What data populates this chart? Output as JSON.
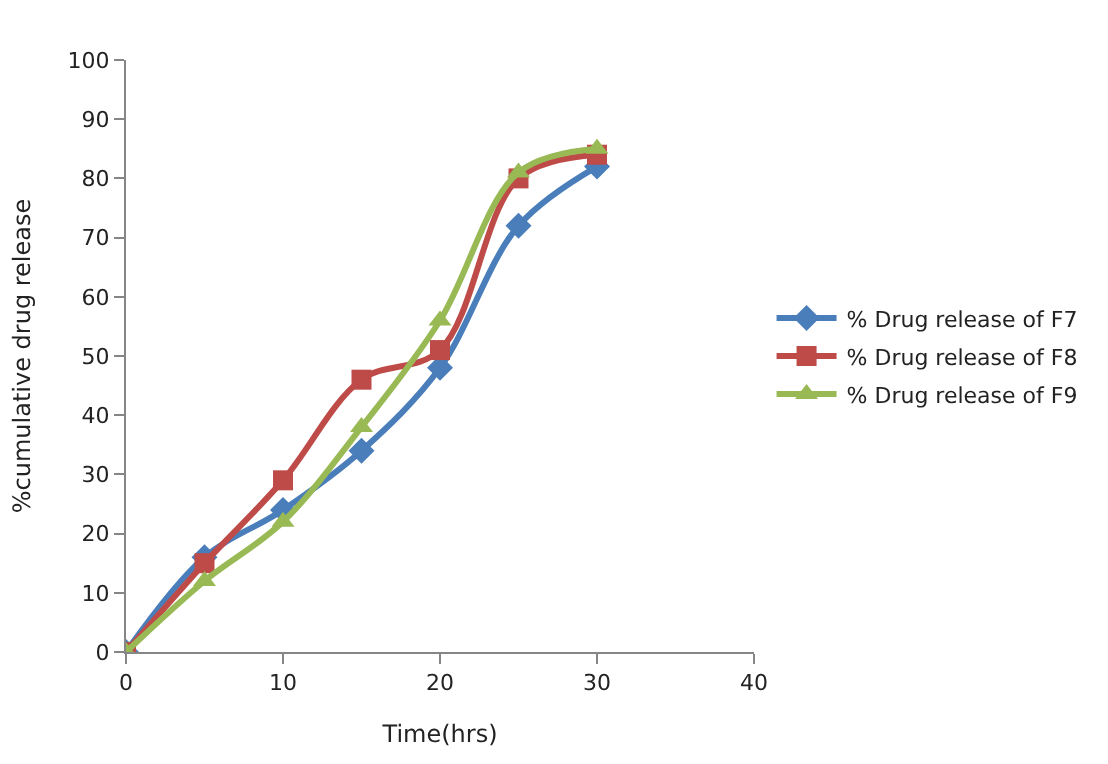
{
  "chart_data": {
    "type": "line",
    "xlabel": "Time(hrs)",
    "ylabel": "%cumulative drug release",
    "x": [
      0,
      5,
      10,
      15,
      20,
      25,
      30
    ],
    "series": [
      {
        "name": "% Drug release of F7",
        "color": "#4a7ebb",
        "marker": "diamond",
        "values": [
          0,
          16,
          24,
          34,
          48,
          72,
          82
        ]
      },
      {
        "name": "% Drug release of F8",
        "color": "#be4b48",
        "marker": "square",
        "values": [
          0,
          15,
          29,
          46,
          51,
          80,
          84
        ]
      },
      {
        "name": "% Drug release of F9",
        "color": "#98b954",
        "marker": "triangle",
        "values": [
          0,
          12,
          22,
          38,
          56,
          81,
          85
        ]
      }
    ],
    "xlim": [
      0,
      40
    ],
    "xticks": [
      0,
      10,
      20,
      30,
      40
    ],
    "ylim": [
      0,
      100
    ],
    "yticks": [
      0,
      10,
      20,
      30,
      40,
      50,
      60,
      70,
      80,
      90,
      100
    ],
    "grid": false,
    "legend": "right",
    "line_style": "solid"
  }
}
